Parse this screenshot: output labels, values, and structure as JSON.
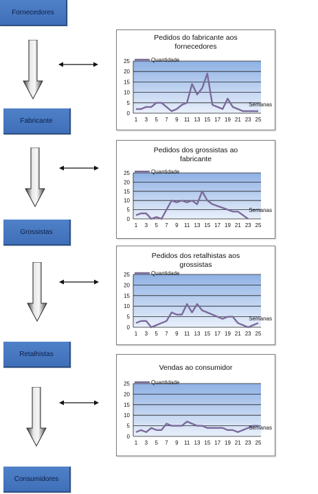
{
  "stages": {
    "fornecedores": "Fornecedores",
    "fabricante": "Fabricante",
    "grossistas": "Grossistas",
    "retalhistas": "Retalhistas",
    "consumidores": "Consumidores"
  },
  "colors": {
    "stage_fill": "#4f81c8",
    "plot_fill": "#aec8ee",
    "series_line": "#7b6a9a"
  },
  "chart_data": [
    {
      "type": "line",
      "title": "Pedidos do fabricante aos fornecedores",
      "xlabel": "Semanas",
      "legend": "Quantidade",
      "legend_position": "top-left",
      "ylim": [
        0,
        25
      ],
      "yticks": [
        0,
        5,
        10,
        15,
        20,
        25
      ],
      "xticks": [
        1,
        3,
        5,
        7,
        9,
        11,
        13,
        15,
        17,
        19,
        21,
        23,
        25
      ],
      "series": [
        {
          "name": "Quantidade",
          "x": [
            1,
            2,
            3,
            4,
            5,
            6,
            7,
            8,
            9,
            10,
            11,
            12,
            13,
            14,
            15,
            16,
            17,
            18,
            19,
            20,
            21,
            22,
            23,
            24,
            25
          ],
          "values": [
            2,
            2,
            3,
            3,
            5,
            5,
            3,
            1,
            2,
            4,
            5,
            14,
            9,
            12,
            19,
            4,
            3,
            2,
            7,
            3,
            2,
            1,
            1,
            1,
            1
          ]
        }
      ]
    },
    {
      "type": "line",
      "title": "Pedidos dos grossistas ao fabricante",
      "xlabel": "Semanas",
      "legend": "Quantidade",
      "legend_position": "top-left",
      "ylim": [
        0,
        25
      ],
      "yticks": [
        0,
        5,
        10,
        15,
        20,
        25
      ],
      "xticks": [
        1,
        3,
        5,
        7,
        9,
        11,
        13,
        15,
        17,
        19,
        21,
        23,
        25
      ],
      "series": [
        {
          "name": "Quantidade",
          "x": [
            1,
            2,
            3,
            4,
            5,
            6,
            7,
            8,
            9,
            10,
            11,
            12,
            13,
            14,
            15,
            16,
            17,
            18,
            19,
            20,
            21,
            22,
            23
          ],
          "values": [
            2,
            3,
            3,
            0,
            1,
            0,
            5,
            10,
            9,
            10,
            9,
            10,
            8,
            15,
            10,
            8,
            7,
            6,
            5,
            4,
            4,
            2,
            0
          ]
        }
      ]
    },
    {
      "type": "line",
      "title": "Pedidos dos retalhistas aos grossistas",
      "xlabel": "Semanas",
      "legend": "Quantidade",
      "legend_position": "top-left",
      "ylim": [
        0,
        25
      ],
      "yticks": [
        0,
        5,
        10,
        15,
        20,
        25
      ],
      "xticks": [
        1,
        3,
        5,
        7,
        9,
        11,
        13,
        15,
        17,
        19,
        21,
        23,
        25
      ],
      "series": [
        {
          "name": "Quantidade",
          "x": [
            1,
            2,
            3,
            4,
            5,
            6,
            7,
            8,
            9,
            10,
            11,
            12,
            13,
            14,
            15,
            16,
            17,
            18,
            19,
            20,
            21,
            22,
            23,
            24,
            25
          ],
          "values": [
            2,
            3,
            3,
            0,
            1,
            2,
            3,
            7,
            6,
            6,
            11,
            7,
            11,
            8,
            7,
            6,
            5,
            4,
            5,
            5,
            2,
            1,
            0,
            1,
            2
          ]
        }
      ]
    },
    {
      "type": "line",
      "title": "Vendas ao consumidor",
      "xlabel": "Semanas",
      "legend": "Quantidade",
      "legend_position": "top-left",
      "ylim": [
        0,
        25
      ],
      "yticks": [
        0,
        5,
        10,
        15,
        20,
        25
      ],
      "xticks": [
        1,
        3,
        5,
        7,
        9,
        11,
        13,
        15,
        17,
        19,
        21,
        23,
        25
      ],
      "series": [
        {
          "name": "Quantidade",
          "x": [
            1,
            2,
            3,
            4,
            5,
            6,
            7,
            8,
            9,
            10,
            11,
            12,
            13,
            14,
            15,
            16,
            17,
            18,
            19,
            20,
            21,
            22,
            23,
            24,
            25
          ],
          "values": [
            2,
            3,
            2,
            4,
            3,
            3,
            6,
            5,
            5,
            5,
            7,
            6,
            5,
            5,
            4,
            4,
            4,
            4,
            3,
            3,
            2,
            3,
            4,
            5,
            5
          ]
        }
      ]
    }
  ]
}
